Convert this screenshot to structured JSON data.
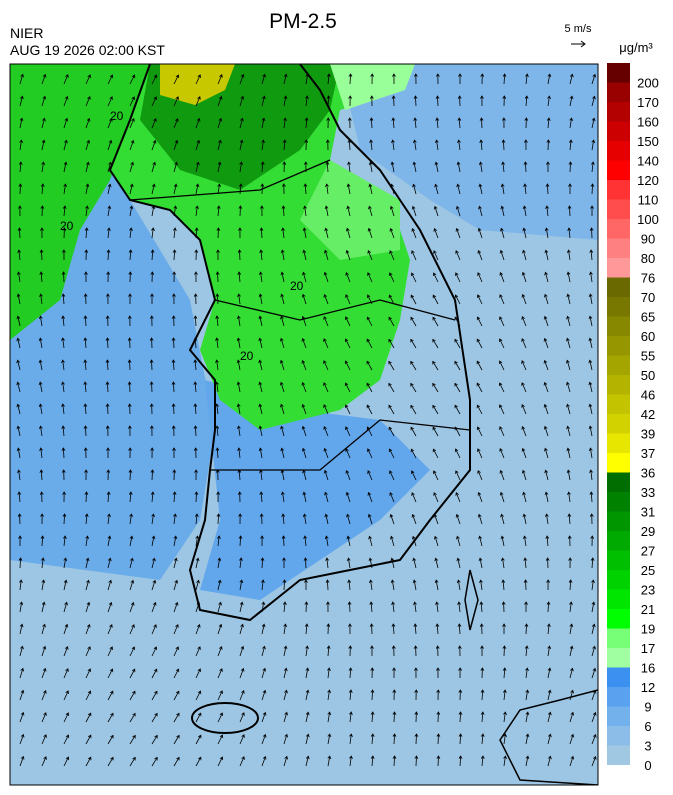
{
  "header": {
    "title": "PM-2.5",
    "agency": "NIER",
    "datetime": "AUG 19 2026 02:00 KST",
    "wind_scale": "5 m/s"
  },
  "map": {
    "contour_label": "20"
  },
  "colorbar": {
    "unit": "μg/m³",
    "ticks": [
      0,
      3,
      6,
      9,
      12,
      16,
      17,
      19,
      21,
      23,
      25,
      27,
      29,
      31,
      33,
      36,
      37,
      39,
      42,
      46,
      50,
      55,
      60,
      65,
      70,
      76,
      80,
      90,
      100,
      110,
      120,
      140,
      150,
      160,
      170,
      200
    ],
    "colors": [
      "#a0c8e2",
      "#8cbde8",
      "#73b1ec",
      "#5aa2f0",
      "#3c91f0",
      "#a0ffa0",
      "#78ff78",
      "#00ff00",
      "#00e600",
      "#00d200",
      "#00be00",
      "#00aa00",
      "#009600",
      "#008200",
      "#006e00",
      "#ffff00",
      "#e6e600",
      "#d2d200",
      "#c3c300",
      "#b4b400",
      "#a5a500",
      "#969600",
      "#878700",
      "#787800",
      "#696900",
      "#ff9999",
      "#ff8080",
      "#ff6666",
      "#ff4d4d",
      "#ff3333",
      "#ff0000",
      "#e60000",
      "#cc0000",
      "#b30000",
      "#990000",
      "#660000"
    ]
  }
}
